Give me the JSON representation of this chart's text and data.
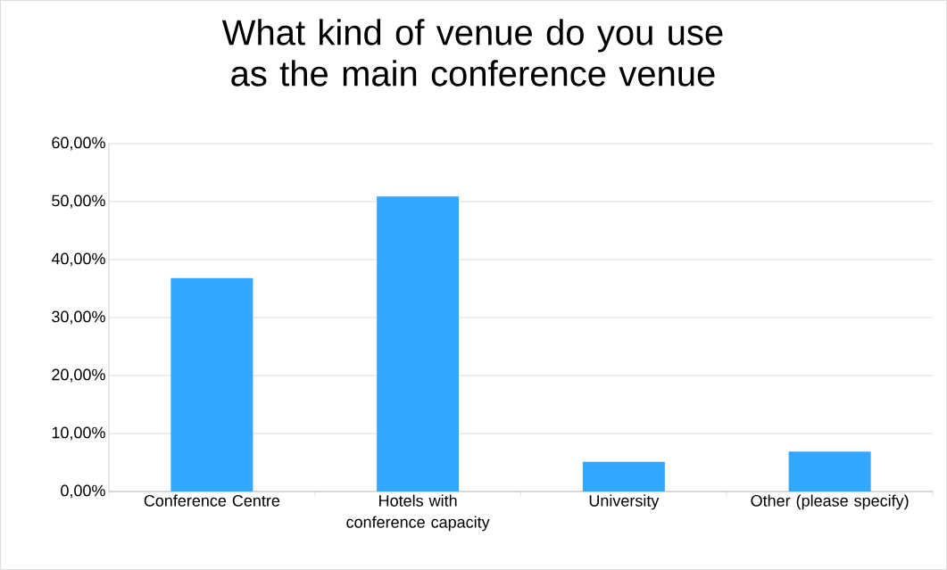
{
  "chart_data": {
    "type": "bar",
    "title": "What kind of venue do you use as the main conference venue",
    "categories": [
      "Conference Centre",
      "Hotels with conference capacity",
      "University",
      "Other (please specify)"
    ],
    "values": [
      36.8,
      50.9,
      5.1,
      6.9
    ],
    "color": "#33a6ff",
    "ylim": [
      0,
      60
    ],
    "yticks": [
      {
        "value": 0,
        "label": "0,00%"
      },
      {
        "value": 10,
        "label": "10,00%"
      },
      {
        "value": 20,
        "label": "20,00%"
      },
      {
        "value": 30,
        "label": "30,00%"
      },
      {
        "value": 40,
        "label": "40,00%"
      },
      {
        "value": 50,
        "label": "50,00%"
      },
      {
        "value": 60,
        "label": "60,00%"
      }
    ],
    "grid": "y"
  }
}
